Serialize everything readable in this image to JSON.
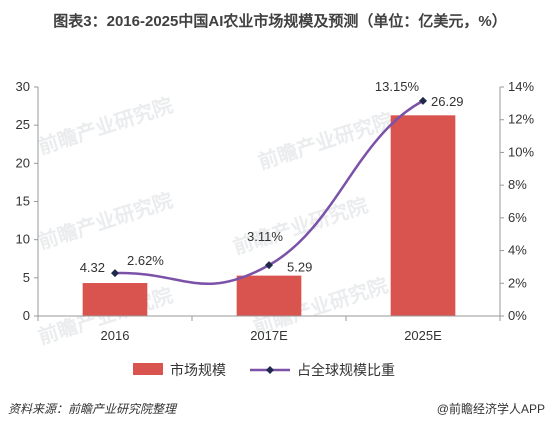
{
  "title": "图表3：2016-2025中国AI农业市场规模及预测（单位：亿美元，%）",
  "source": "资料来源：前瞻产业研究院整理",
  "brand": "@前瞻经济学人APP",
  "watermark": "前瞻产业研究院",
  "chart_data": {
    "type": "bar",
    "categories": [
      "2016",
      "2017E",
      "2025E"
    ],
    "series": [
      {
        "name": "市场规模",
        "kind": "bar",
        "axis": "left",
        "values": [
          4.32,
          5.29,
          26.29
        ],
        "labels": [
          "4.32",
          "5.29",
          "26.29"
        ],
        "color": "#d9534f"
      },
      {
        "name": "占全球规模比重",
        "kind": "line",
        "axis": "right",
        "values": [
          2.62,
          3.11,
          13.15
        ],
        "labels": [
          "2.62%",
          "3.11%",
          "13.15%"
        ],
        "color": "#7b52a8"
      }
    ],
    "y_left": {
      "min": 0,
      "max": 30,
      "ticks": [
        "0",
        "5",
        "10",
        "15",
        "20",
        "25",
        "30"
      ]
    },
    "y_right": {
      "min": 0,
      "max": 14,
      "ticks": [
        "0%",
        "2%",
        "4%",
        "6%",
        "8%",
        "10%",
        "12%",
        "14%"
      ]
    },
    "grid": false,
    "legend": "bottom"
  }
}
